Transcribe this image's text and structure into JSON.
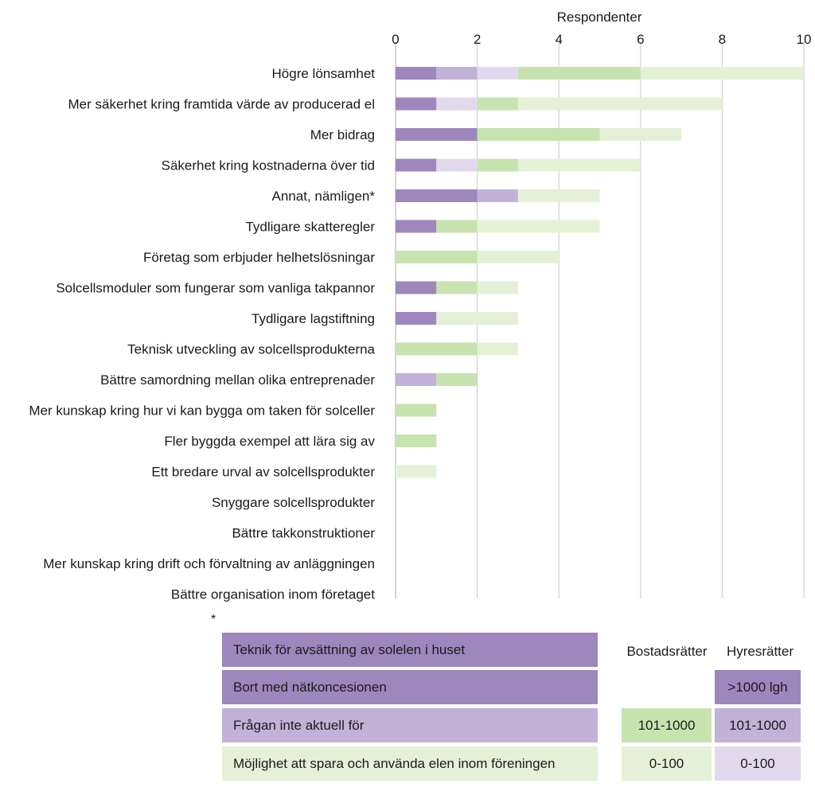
{
  "chart_data": {
    "type": "bar",
    "stacked": true,
    "orientation": "horizontal",
    "xlabel": "Respondenter",
    "xlim": [
      0,
      10
    ],
    "xticks": [
      0,
      2,
      4,
      6,
      8,
      10
    ],
    "grid": true,
    "categories": [
      "Högre lönsamhet",
      "Mer säkerhet kring framtida värde av producerad el",
      "Mer bidrag",
      "Säkerhet kring kostnaderna över tid",
      "Annat, nämligen*",
      "Tydligare skatteregler",
      "Företag som erbjuder helhetslösningar",
      "Solcellsmoduler som fungerar som vanliga takpannor",
      "Tydligare lagstiftning",
      "Teknisk utveckling av solcellsprodukterna",
      "Bättre samordning mellan olika entreprenader",
      "Mer kunskap kring hur vi kan bygga om taken för solceller",
      "Fler byggda exempel att lära sig av",
      "Ett bredare urval av solcellsprodukter",
      "Snyggare solcellsprodukter",
      "Bättre takkonstruktioner",
      "Mer kunskap kring drift och förvaltning av anläggningen",
      "Bättre organisation inom företaget"
    ],
    "series": [
      {
        "color": "#9d87bd",
        "values": [
          1,
          1,
          2,
          1,
          2,
          1,
          0,
          1,
          1,
          0,
          0,
          0,
          0,
          0,
          0,
          0,
          0,
          0
        ]
      },
      {
        "color": "#c2b2d8",
        "values": [
          1,
          0,
          0,
          0,
          1,
          0,
          0,
          0,
          0,
          0,
          1,
          0,
          0,
          0,
          0,
          0,
          0,
          0
        ]
      },
      {
        "color": "#e2daec",
        "values": [
          1,
          1,
          0,
          1,
          0,
          0,
          0,
          0,
          0,
          0,
          0,
          0,
          0,
          0,
          0,
          0,
          0,
          0
        ]
      },
      {
        "color": "#c7e3b0",
        "values": [
          3,
          1,
          3,
          1,
          0,
          1,
          2,
          1,
          0,
          2,
          1,
          1,
          1,
          0,
          0,
          0,
          0,
          0
        ]
      },
      {
        "color": "#e4f1d7",
        "values": [
          4,
          5,
          2,
          3,
          2,
          3,
          2,
          1,
          2,
          1,
          0,
          0,
          0,
          1,
          0,
          0,
          0,
          0
        ]
      }
    ]
  },
  "footnote": {
    "star": "*",
    "items": [
      {
        "text": "Teknik för avsättning av solelen i huset",
        "color": "#9d87bd"
      },
      {
        "text": "Bort med nätkoncesionen",
        "color": "#9d87bd"
      },
      {
        "text": "Frågan inte aktuell för",
        "color": "#c2b2d8"
      },
      {
        "text": "Möjlighet att spara och använda elen inom föreningen",
        "color": "#e4f1d7"
      }
    ]
  },
  "legend_table": {
    "headers": [
      "Bostadsrätter",
      "Hyresrätter"
    ],
    "hyres": [
      {
        "label": ">1000 lgh",
        "color": "#9d87bd"
      },
      {
        "label": "101-1000",
        "color": "#c2b2d8"
      },
      {
        "label": "0-100",
        "color": "#e2daec"
      }
    ],
    "bostads": [
      {
        "label": "101-1000",
        "color": "#c7e3b0"
      },
      {
        "label": "0-100",
        "color": "#e4f1d7"
      }
    ]
  }
}
